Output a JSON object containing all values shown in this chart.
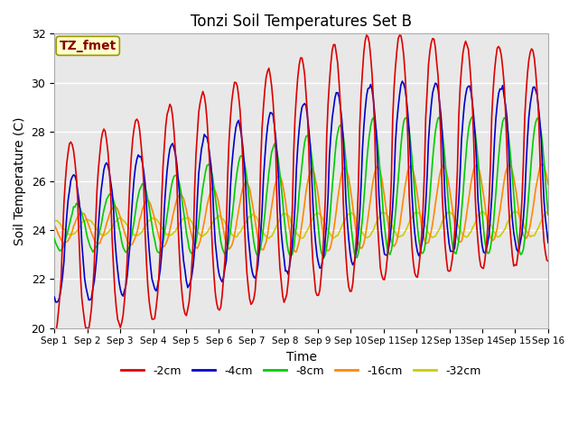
{
  "title": "Tonzi Soil Temperatures Set B",
  "xlabel": "Time",
  "ylabel": "Soil Temperature (C)",
  "annotation": "TZ_fmet",
  "ylim": [
    20,
    32
  ],
  "xlim_days": 15,
  "x_tick_labels": [
    "Sep 1",
    "Sep 2",
    "Sep 3",
    "Sep 4",
    "Sep 5",
    "Sep 6",
    "Sep 7",
    "Sep 8",
    "Sep 9",
    "Sep 10",
    "Sep 11",
    "Sep 12",
    "Sep 13",
    "Sep 14",
    "Sep 15",
    "Sep 16"
  ],
  "series": {
    "-2cm": {
      "color": "#dd0000",
      "lw": 1.2
    },
    "-4cm": {
      "color": "#0000cc",
      "lw": 1.2
    },
    "-8cm": {
      "color": "#00cc00",
      "lw": 1.2
    },
    "-16cm": {
      "color": "#ff8800",
      "lw": 1.2
    },
    "-32cm": {
      "color": "#cccc00",
      "lw": 1.2
    }
  },
  "bg_color": "#e8e8e8",
  "fig_color": "#ffffff",
  "grid_color": "#ffffff",
  "annotation_bg": "#ffffcc",
  "annotation_border": "#999900",
  "annotation_text_color": "#880000"
}
